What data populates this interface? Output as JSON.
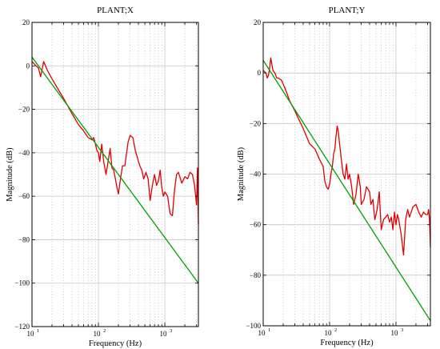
{
  "chart_data": [
    {
      "type": "line",
      "title": "PLANT;X",
      "xlabel": "Frequency  (Hz)",
      "ylabel": "Magnitude (dB)",
      "x_scale": "log",
      "xlim": [
        10,
        3200
      ],
      "ylim": [
        -120,
        20
      ],
      "xticks": [
        10,
        100,
        1000
      ],
      "xtick_labels": [
        "10",
        "10",
        "10"
      ],
      "xtick_exps": [
        "1",
        "2",
        "3"
      ],
      "yticks": [
        20,
        0,
        -20,
        -40,
        -60,
        -80,
        -100,
        -120
      ],
      "ytick_labels": [
        "20",
        "0",
        "−20",
        "−40",
        "−60",
        "−80",
        "−100",
        "−120"
      ],
      "grid": true,
      "series": [
        {
          "color": "#e00000",
          "x": [
            10,
            11.5,
            12.5,
            13.5,
            15,
            17,
            20,
            25,
            30,
            40,
            50,
            60,
            70,
            80,
            85,
            90,
            95,
            100,
            105,
            112,
            120,
            130,
            140,
            150,
            160,
            170,
            180,
            190,
            200,
            215,
            230,
            250,
            280,
            300,
            330,
            360,
            400,
            420,
            450,
            480,
            520,
            560,
            600,
            650,
            700,
            750,
            800,
            850,
            900,
            950,
            1000,
            1100,
            1200,
            1300,
            1400,
            1500,
            1600,
            1800,
            2000,
            2200,
            2400,
            2600,
            2800,
            3000,
            3100,
            3200
          ],
          "y": [
            2,
            0,
            -1,
            -5,
            2,
            -2,
            -6,
            -11,
            -15,
            -22,
            -27,
            -30,
            -33,
            -34,
            -33,
            -36,
            -39,
            -40,
            -44,
            -36,
            -44,
            -50,
            -44,
            -38,
            -47,
            -48,
            -52,
            -56,
            -59,
            -52,
            -46,
            -46,
            -35,
            -32,
            -33,
            -39,
            -44,
            -46,
            -48,
            -52,
            -49,
            -52,
            -62,
            -55,
            -50,
            -55,
            -53,
            -48,
            -56,
            -60,
            -58,
            -60,
            -68,
            -69,
            -57,
            -50,
            -49,
            -54,
            -51,
            -52,
            -49,
            -50,
            -55,
            -64,
            -47,
            -73
          ]
        },
        {
          "color": "#00a000",
          "x": [
            10,
            3200
          ],
          "y": [
            4,
            -100
          ]
        }
      ]
    },
    {
      "type": "line",
      "title": "PLANT;Y",
      "xlabel": "Frequency  (Hz)",
      "ylabel": "Magnitude (dB)",
      "x_scale": "log",
      "xlim": [
        10,
        3300
      ],
      "ylim": [
        -100,
        20
      ],
      "xticks": [
        10,
        100,
        1000
      ],
      "xtick_labels": [
        "10",
        "10",
        "10"
      ],
      "xtick_exps": [
        "1",
        "2",
        "3"
      ],
      "yticks": [
        20,
        0,
        -20,
        -40,
        -60,
        -80,
        -100
      ],
      "ytick_labels": [
        "20",
        "0",
        "−20",
        "−40",
        "−60",
        "−80",
        "−100"
      ],
      "grid": true,
      "series": [
        {
          "color": "#e00000",
          "x": [
            10,
            11,
            11.5,
            12,
            12.5,
            13,
            14,
            15,
            16,
            17,
            19,
            22,
            25,
            30,
            40,
            50,
            60,
            70,
            80,
            85,
            90,
            95,
            100,
            105,
            110,
            115,
            120,
            125,
            130,
            135,
            140,
            150,
            160,
            170,
            180,
            190,
            200,
            215,
            230,
            250,
            270,
            290,
            300,
            330,
            360,
            400,
            420,
            450,
            480,
            520,
            560,
            600,
            650,
            700,
            750,
            800,
            850,
            900,
            950,
            1000,
            1050,
            1100,
            1200,
            1300,
            1400,
            1500,
            1600,
            1800,
            2000,
            2200,
            2400,
            2600,
            2800,
            3000,
            3100,
            3200,
            3300
          ],
          "y": [
            1,
            0,
            -2,
            -1,
            2,
            6,
            1,
            0,
            -2,
            -2,
            -3,
            -7,
            -11,
            -15,
            -22,
            -28,
            -30,
            -34,
            -37,
            -43,
            -45,
            -46,
            -44,
            -40,
            -37,
            -32,
            -30,
            -25,
            -21,
            -23,
            -27,
            -34,
            -40,
            -42,
            -36,
            -42,
            -40,
            -45,
            -52,
            -48,
            -40,
            -45,
            -52,
            -50,
            -45,
            -47,
            -52,
            -50,
            -58,
            -54,
            -47,
            -62,
            -58,
            -57,
            -56,
            -59,
            -57,
            -62,
            -55,
            -60,
            -56,
            -58,
            -64,
            -72,
            -58,
            -54,
            -57,
            -53,
            -52,
            -55,
            -57,
            -55,
            -56,
            -56,
            -54,
            -58,
            -69
          ]
        },
        {
          "color": "#00a000",
          "x": [
            10,
            3300
          ],
          "y": [
            5,
            -98
          ]
        }
      ]
    }
  ]
}
